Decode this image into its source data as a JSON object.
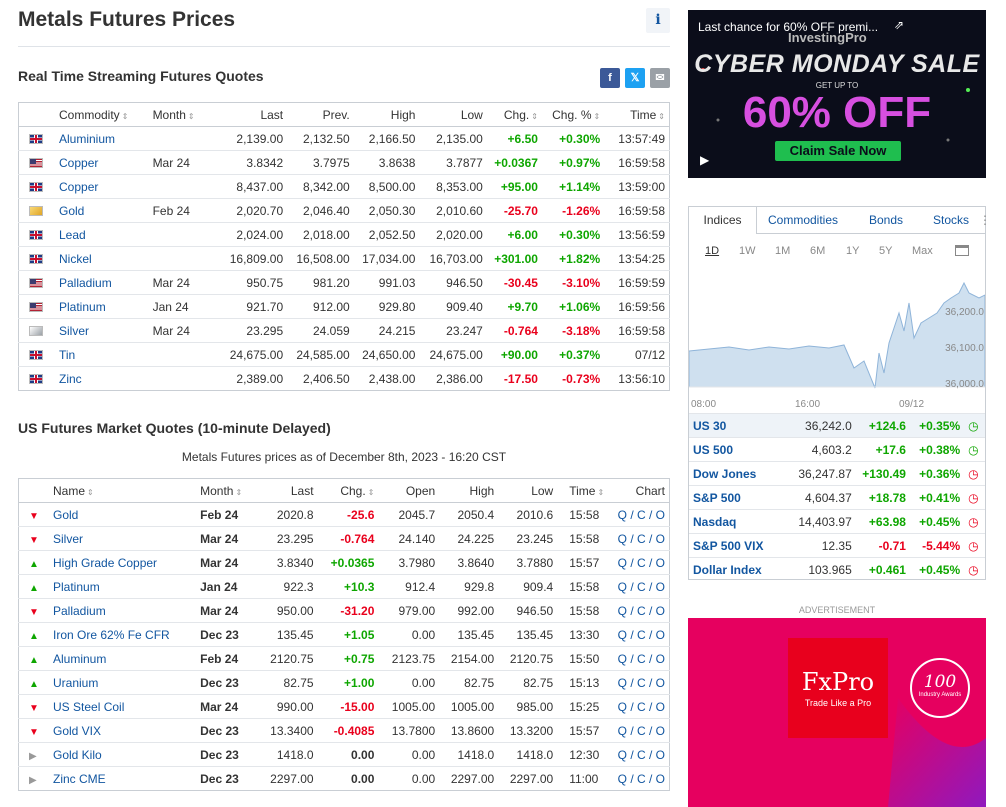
{
  "page": {
    "title": "Metals Futures Prices",
    "info_icon": "i",
    "section1_title": "Real Time Streaming Futures Quotes",
    "section2_title": "US Futures Market Quotes (10-minute Delayed)",
    "section2_subtitle": "Metals Futures prices as of December 8th, 2023 - 16:20 CST"
  },
  "share": {
    "facebook": "f",
    "twitter": "𝕏",
    "email": "✉"
  },
  "realtime": {
    "headers": {
      "commodity": "Commodity",
      "month": "Month",
      "last": "Last",
      "prev": "Prev.",
      "high": "High",
      "low": "Low",
      "chg": "Chg.",
      "chgp": "Chg. %",
      "time": "Time"
    },
    "rows": [
      {
        "flag": "uk",
        "name": "Aluminium",
        "month": "",
        "last": "2,139.00",
        "prev": "2,132.50",
        "high": "2,166.50",
        "low": "2,135.00",
        "chg": "+6.50",
        "chgp": "+0.30%",
        "time": "13:57:49",
        "dir": "pos"
      },
      {
        "flag": "us",
        "name": "Copper",
        "month": "Mar 24",
        "last": "3.8342",
        "prev": "3.7975",
        "high": "3.8638",
        "low": "3.7877",
        "chg": "+0.0367",
        "chgp": "+0.97%",
        "time": "16:59:58",
        "dir": "pos"
      },
      {
        "flag": "uk",
        "name": "Copper",
        "month": "",
        "last": "8,437.00",
        "prev": "8,342.00",
        "high": "8,500.00",
        "low": "8,353.00",
        "chg": "+95.00",
        "chgp": "+1.14%",
        "time": "13:59:00",
        "dir": "pos"
      },
      {
        "flag": "gold",
        "name": "Gold",
        "month": "Feb 24",
        "last": "2,020.70",
        "prev": "2,046.40",
        "high": "2,050.30",
        "low": "2,010.60",
        "chg": "-25.70",
        "chgp": "-1.26%",
        "time": "16:59:58",
        "dir": "neg"
      },
      {
        "flag": "uk",
        "name": "Lead",
        "month": "",
        "last": "2,024.00",
        "prev": "2,018.00",
        "high": "2,052.50",
        "low": "2,020.00",
        "chg": "+6.00",
        "chgp": "+0.30%",
        "time": "13:56:59",
        "dir": "pos"
      },
      {
        "flag": "uk",
        "name": "Nickel",
        "month": "",
        "last": "16,809.00",
        "prev": "16,508.00",
        "high": "17,034.00",
        "low": "16,703.00",
        "chg": "+301.00",
        "chgp": "+1.82%",
        "time": "13:54:25",
        "dir": "pos"
      },
      {
        "flag": "us",
        "name": "Palladium",
        "month": "Mar 24",
        "last": "950.75",
        "prev": "981.20",
        "high": "991.03",
        "low": "946.50",
        "chg": "-30.45",
        "chgp": "-3.10%",
        "time": "16:59:59",
        "dir": "neg"
      },
      {
        "flag": "us",
        "name": "Platinum",
        "month": "Jan 24",
        "last": "921.70",
        "prev": "912.00",
        "high": "929.80",
        "low": "909.40",
        "chg": "+9.70",
        "chgp": "+1.06%",
        "time": "16:59:56",
        "dir": "pos"
      },
      {
        "flag": "silv",
        "name": "Silver",
        "month": "Mar 24",
        "last": "23.295",
        "prev": "24.059",
        "high": "24.215",
        "low": "23.247",
        "chg": "-0.764",
        "chgp": "-3.18%",
        "time": "16:59:58",
        "dir": "neg"
      },
      {
        "flag": "uk",
        "name": "Tin",
        "month": "",
        "last": "24,675.00",
        "prev": "24,585.00",
        "high": "24,650.00",
        "low": "24,675.00",
        "chg": "+90.00",
        "chgp": "+0.37%",
        "time": "07/12",
        "dir": "pos"
      },
      {
        "flag": "uk",
        "name": "Zinc",
        "month": "",
        "last": "2,389.00",
        "prev": "2,406.50",
        "high": "2,438.00",
        "low": "2,386.00",
        "chg": "-17.50",
        "chgp": "-0.73%",
        "time": "13:56:10",
        "dir": "neg"
      }
    ]
  },
  "delayed": {
    "headers": {
      "name": "Name",
      "month": "Month",
      "last": "Last",
      "chg": "Chg.",
      "open": "Open",
      "high": "High",
      "low": "Low",
      "time": "Time",
      "chart": "Chart"
    },
    "chart_links": "Q / C / O",
    "rows": [
      {
        "arrow": "dn",
        "name": "Gold",
        "month": "Feb 24",
        "last": "2020.8",
        "chg": "-25.6",
        "open": "2045.7",
        "high": "2050.4",
        "low": "2010.6",
        "time": "15:58",
        "dir": "neg"
      },
      {
        "arrow": "dn",
        "name": "Silver",
        "month": "Mar 24",
        "last": "23.295",
        "chg": "-0.764",
        "open": "24.140",
        "high": "24.225",
        "low": "23.245",
        "time": "15:58",
        "dir": "neg"
      },
      {
        "arrow": "up",
        "name": "High Grade Copper",
        "month": "Mar 24",
        "last": "3.8340",
        "chg": "+0.0365",
        "open": "3.7980",
        "high": "3.8640",
        "low": "3.7880",
        "time": "15:57",
        "dir": "pos"
      },
      {
        "arrow": "up",
        "name": "Platinum",
        "month": "Jan 24",
        "last": "922.3",
        "chg": "+10.3",
        "open": "912.4",
        "high": "929.8",
        "low": "909.4",
        "time": "15:58",
        "dir": "pos"
      },
      {
        "arrow": "dn",
        "name": "Palladium",
        "month": "Mar 24",
        "last": "950.00",
        "chg": "-31.20",
        "open": "979.00",
        "high": "992.00",
        "low": "946.50",
        "time": "15:58",
        "dir": "neg"
      },
      {
        "arrow": "up",
        "name": "Iron Ore 62% Fe CFR",
        "month": "Dec 23",
        "last": "135.45",
        "chg": "+1.05",
        "open": "0.00",
        "high": "135.45",
        "low": "135.45",
        "time": "13:30",
        "dir": "pos"
      },
      {
        "arrow": "up",
        "name": "Aluminum",
        "month": "Feb 24",
        "last": "2120.75",
        "chg": "+0.75",
        "open": "2123.75",
        "high": "2154.00",
        "low": "2120.75",
        "time": "15:50",
        "dir": "pos"
      },
      {
        "arrow": "up",
        "name": "Uranium",
        "month": "Dec 23",
        "last": "82.75",
        "chg": "+1.00",
        "open": "0.00",
        "high": "82.75",
        "low": "82.75",
        "time": "15:13",
        "dir": "pos"
      },
      {
        "arrow": "dn",
        "name": "US Steel Coil",
        "month": "Mar 24",
        "last": "990.00",
        "chg": "-15.00",
        "open": "1005.00",
        "high": "1005.00",
        "low": "985.00",
        "time": "15:25",
        "dir": "neg"
      },
      {
        "arrow": "dn",
        "name": "Gold VIX",
        "month": "Dec 23",
        "last": "13.3400",
        "chg": "-0.4085",
        "open": "13.7800",
        "high": "13.8600",
        "low": "13.3200",
        "time": "15:57",
        "dir": "neg"
      },
      {
        "arrow": "gr",
        "name": "Gold Kilo",
        "month": "Dec 23",
        "last": "1418.0",
        "chg": "0.00",
        "open": "0.00",
        "high": "1418.0",
        "low": "1418.0",
        "time": "12:30",
        "dir": "zero"
      },
      {
        "arrow": "gr",
        "name": "Zinc CME",
        "month": "Dec 23",
        "last": "2297.00",
        "chg": "0.00",
        "open": "0.00",
        "high": "2297.00",
        "low": "2297.00",
        "time": "11:00",
        "dir": "zero"
      }
    ]
  },
  "ad1": {
    "caption": "Last chance for 60% OFF premi...",
    "brand": "InvestingPro",
    "headline": "CYBER MONDAY SALE",
    "upto": "GET UP TO",
    "offer": "60% OFF",
    "cta": "Claim Sale Now"
  },
  "indices": {
    "tabs": [
      "Indices",
      "Commodities",
      "Bonds",
      "Stocks"
    ],
    "ranges": [
      "1D",
      "1W",
      "1M",
      "6M",
      "1Y",
      "5Y",
      "Max"
    ],
    "chart_x_labels": [
      "08:00",
      "16:00",
      "09/12"
    ],
    "chart_y_labels": [
      "36,200.0",
      "36,100.0",
      "36,000.0"
    ],
    "rows": [
      {
        "name": "US 30",
        "last": "36,242.0",
        "chg": "+124.6",
        "chgp": "+0.35%",
        "status": "open"
      },
      {
        "name": "US 500",
        "last": "4,603.2",
        "chg": "+17.6",
        "chgp": "+0.38%",
        "status": "open"
      },
      {
        "name": "Dow Jones",
        "last": "36,247.87",
        "chg": "+130.49",
        "chgp": "+0.36%",
        "status": "closed"
      },
      {
        "name": "S&P 500",
        "last": "4,604.37",
        "chg": "+18.78",
        "chgp": "+0.41%",
        "status": "closed"
      },
      {
        "name": "Nasdaq",
        "last": "14,403.97",
        "chg": "+63.98",
        "chgp": "+0.45%",
        "status": "closed"
      },
      {
        "name": "S&P 500 VIX",
        "last": "12.35",
        "chg": "-0.71",
        "chgp": "-5.44%",
        "status": "closed"
      },
      {
        "name": "Dollar Index",
        "last": "103.965",
        "chg": "+0.461",
        "chgp": "+0.45%",
        "status": "closed"
      }
    ]
  },
  "ad2": {
    "label": "ADVERTISEMENT",
    "brand": "FxPro",
    "tagline": "Trade Like a Pro",
    "badge": "100",
    "badge_text": "Industry Awards"
  },
  "colors": {
    "link": "#1256a0",
    "positive": "#0ea600",
    "negative": "#e9001c",
    "ad_bg": "#e6005f",
    "chart_fill": "#cfe0ef"
  }
}
